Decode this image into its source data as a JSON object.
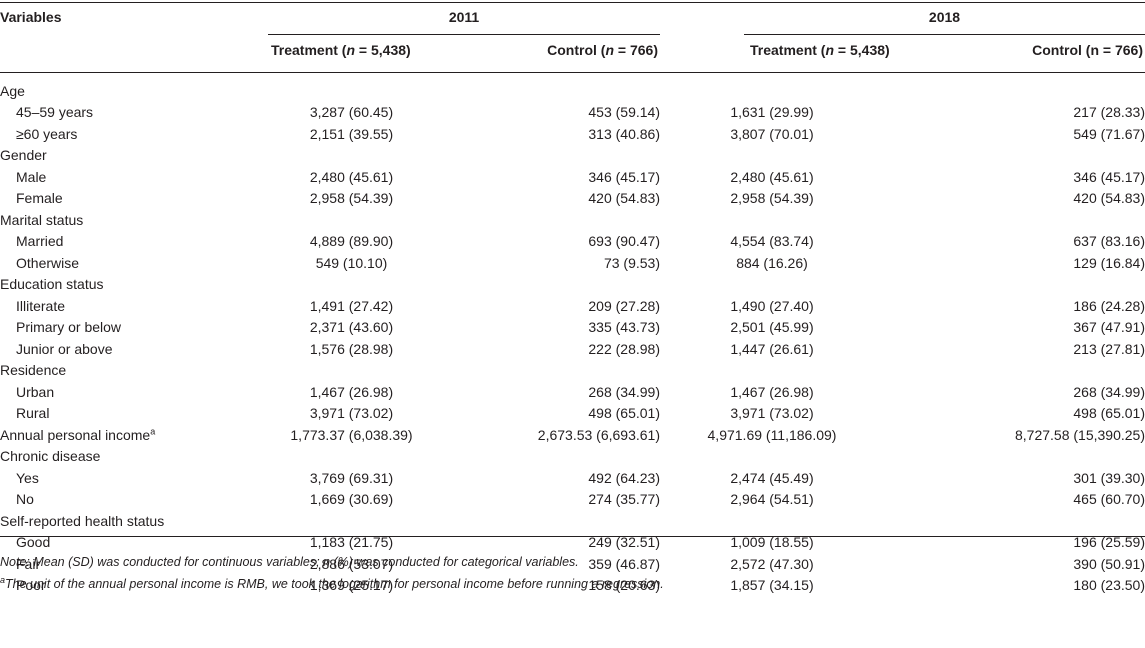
{
  "header": {
    "variables": "Variables",
    "year_2011": "2011",
    "year_2018": "2018",
    "treatment_2011": {
      "prefix": "Treatment (",
      "n": "n",
      "suffix": " = 5,438)"
    },
    "control_2011": {
      "prefix": "Control (",
      "n": "n",
      "suffix": " = 766)"
    },
    "treatment_2018": {
      "prefix": "Treatment (",
      "n": "n",
      "suffix": " = 5,438)"
    },
    "control_2018": {
      "label": "Control (n = 766)"
    }
  },
  "rows": [
    {
      "type": "category",
      "label": "Age"
    },
    {
      "type": "item",
      "label": "45–59 years",
      "values": [
        "3,287 (60.45)",
        "453 (59.14)",
        "1,631 (29.99)",
        "217 (28.33)"
      ]
    },
    {
      "type": "item",
      "label": "≥60 years",
      "values": [
        "2,151 (39.55)",
        "313 (40.86)",
        "3,807 (70.01)",
        "549 (71.67)"
      ]
    },
    {
      "type": "category",
      "label": "Gender"
    },
    {
      "type": "item",
      "label": "Male",
      "values": [
        "2,480 (45.61)",
        "346 (45.17)",
        "2,480 (45.61)",
        "346 (45.17)"
      ]
    },
    {
      "type": "item",
      "label": "Female",
      "values": [
        "2,958 (54.39)",
        "420 (54.83)",
        "2,958 (54.39)",
        "420 (54.83)"
      ]
    },
    {
      "type": "category",
      "label": "Marital status"
    },
    {
      "type": "item",
      "label": "Married",
      "values": [
        "4,889 (89.90)",
        "693 (90.47)",
        "4,554 (83.74)",
        "637 (83.16)"
      ]
    },
    {
      "type": "item",
      "label": "Otherwise",
      "values": [
        "549 (10.10)",
        "73 (9.53)",
        "884 (16.26)",
        "129 (16.84)"
      ]
    },
    {
      "type": "category",
      "label": "Education status"
    },
    {
      "type": "item",
      "label": "Illiterate",
      "values": [
        "1,491 (27.42)",
        "209 (27.28)",
        "1,490 (27.40)",
        "186 (24.28)"
      ]
    },
    {
      "type": "item",
      "label": "Primary or below",
      "values": [
        "2,371 (43.60)",
        "335 (43.73)",
        "2,501 (45.99)",
        "367 (47.91)"
      ]
    },
    {
      "type": "item",
      "label": "Junior or above",
      "values": [
        "1,576 (28.98)",
        "222 (28.98)",
        "1,447 (26.61)",
        "213 (27.81)"
      ]
    },
    {
      "type": "category",
      "label": "Residence"
    },
    {
      "type": "item",
      "label": "Urban",
      "values": [
        "1,467 (26.98)",
        "268 (34.99)",
        "1,467 (26.98)",
        "268 (34.99)"
      ]
    },
    {
      "type": "item",
      "label": "Rural",
      "values": [
        "3,971 (73.02)",
        "498 (65.01)",
        "3,971 (73.02)",
        "498 (65.01)"
      ]
    },
    {
      "type": "category_value",
      "label": "Annual personal income",
      "sup": "a",
      "values": [
        "1,773.37 (6,038.39)",
        "2,673.53 (6,693.61)",
        "4,971.69 (11,186.09)",
        "8,727.58 (15,390.25)"
      ]
    },
    {
      "type": "category",
      "label": "Chronic disease"
    },
    {
      "type": "item",
      "label": "Yes",
      "values": [
        "3,769 (69.31)",
        "492 (64.23)",
        "2,474 (45.49)",
        "301 (39.30)"
      ]
    },
    {
      "type": "item",
      "label": "No",
      "values": [
        "1,669 (30.69)",
        "274 (35.77)",
        "2,964 (54.51)",
        "465 (60.70)"
      ]
    },
    {
      "type": "category",
      "label": "Self-reported health status"
    },
    {
      "type": "item",
      "label": "Good",
      "values": [
        "1,183 (21.75)",
        "249 (32.51)",
        "1,009 (18.55)",
        "196 (25.59)"
      ]
    },
    {
      "type": "item",
      "label": "Fair",
      "values": [
        "2,886 (53.07)",
        "359 (46.87)",
        "2,572 (47.30)",
        "390 (50.91)"
      ]
    },
    {
      "type": "item",
      "label": "Poor",
      "values": [
        "1,369 (25.17)",
        "158 (20.63)",
        "1,857 (34.15)",
        "180 (23.50)"
      ]
    }
  ],
  "notes": {
    "note1": "Note: Mean (SD) was conducted for continuous variables; n (%) was conducted for categorical variables.",
    "note2_sup": "a",
    "note2": "The unit of the annual personal income is RMB, we took the logarithm for personal income before running a regression."
  }
}
